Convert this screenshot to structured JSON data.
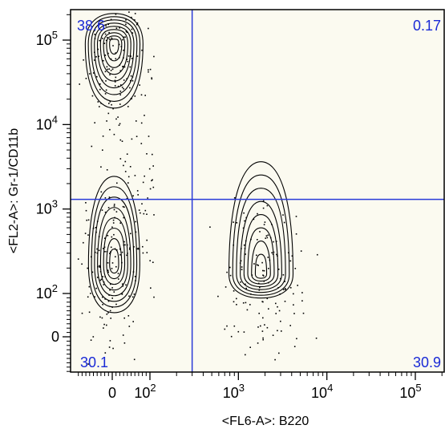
{
  "chart_data": {
    "type": "scatter",
    "subtype": "flow-cytometry-contour",
    "x_axis": {
      "label": "<FL6-A>: B220",
      "scale": "biexponential",
      "ticks": [
        {
          "value": 0,
          "label": "0"
        },
        {
          "value": 100,
          "label": "10",
          "exp": "2"
        },
        {
          "value": 1000,
          "label": "10",
          "exp": "3"
        },
        {
          "value": 10000,
          "label": "10",
          "exp": "4"
        },
        {
          "value": 100000,
          "label": "10",
          "exp": "5"
        }
      ]
    },
    "y_axis": {
      "label": "<FL2-A>: Gr-1/CD11b",
      "scale": "biexponential",
      "ticks": [
        {
          "value": 0,
          "label": "0"
        },
        {
          "value": 100,
          "label": "10",
          "exp": "2"
        },
        {
          "value": 1000,
          "label": "10",
          "exp": "3"
        },
        {
          "value": 10000,
          "label": "10",
          "exp": "4"
        },
        {
          "value": 100000,
          "label": "10",
          "exp": "5"
        }
      ]
    },
    "gate": {
      "x": 300,
      "y": 1300
    },
    "quadrants": [
      {
        "position": "top-left",
        "percent": "38.6"
      },
      {
        "position": "top-right",
        "percent": "0.17"
      },
      {
        "position": "bottom-left",
        "percent": "30.1"
      },
      {
        "position": "bottom-right",
        "percent": "30.9"
      }
    ],
    "populations": [
      {
        "quadrant": "top-left",
        "x_center": 5,
        "y_center": 90000,
        "levels": 9
      },
      {
        "quadrant": "bottom-left",
        "x_center": 5,
        "y_center": 220,
        "levels": 8
      },
      {
        "quadrant": "bottom-right",
        "x_center": 1800,
        "y_center": 170,
        "levels": 8
      }
    ],
    "colors": {
      "gate_line": "#2a3ad8",
      "quadrant_label": "#1a2ad6",
      "plot_background": "#fbfaf0",
      "contour": "#000000"
    }
  }
}
